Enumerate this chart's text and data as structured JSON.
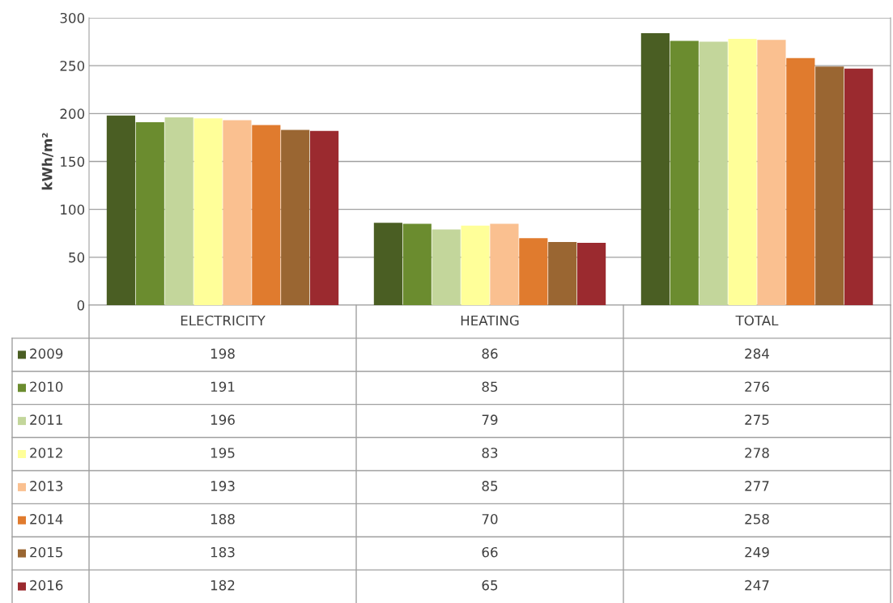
{
  "chart_data": {
    "type": "bar",
    "ylabel": "kWh/m²",
    "categories": [
      "ELECTRICITY",
      "HEATING",
      "TOTAL"
    ],
    "series": [
      {
        "name": "2009",
        "color": "#4a5e23",
        "values": [
          198,
          86,
          284
        ]
      },
      {
        "name": "2010",
        "color": "#6b8c2f",
        "values": [
          191,
          85,
          276
        ]
      },
      {
        "name": "2011",
        "color": "#c3d69b",
        "values": [
          196,
          79,
          275
        ]
      },
      {
        "name": "2012",
        "color": "#ffff99",
        "values": [
          195,
          83,
          278
        ]
      },
      {
        "name": "2013",
        "color": "#fac090",
        "values": [
          193,
          85,
          277
        ]
      },
      {
        "name": "2014",
        "color": "#e07b2e",
        "values": [
          188,
          70,
          258
        ]
      },
      {
        "name": "2015",
        "color": "#9a6632",
        "values": [
          183,
          66,
          249
        ]
      },
      {
        "name": "2016",
        "color": "#9b2a2f",
        "values": [
          182,
          65,
          247
        ]
      }
    ],
    "ylim": [
      0,
      300
    ],
    "yticks": [
      0,
      50,
      100,
      150,
      200,
      250,
      300
    ],
    "grid": "y",
    "legend": "bottom",
    "data_labels": true
  }
}
